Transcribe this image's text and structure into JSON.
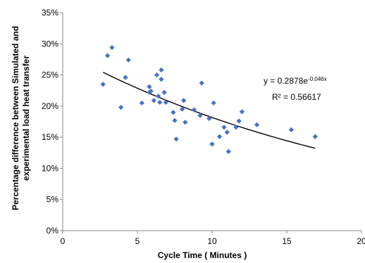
{
  "chart_data": {
    "type": "scatter",
    "title": "",
    "xlabel": "Cycle Time ( Minutes )",
    "ylabel_lines": [
      "Percentage difference between Simulated and",
      "experimental load heat transfer"
    ],
    "xlim": [
      0,
      20
    ],
    "ylim": [
      0,
      0.35
    ],
    "x_ticks": [
      0,
      5,
      10,
      15,
      20
    ],
    "x_tick_labels": [
      "0",
      "5",
      "10",
      "15",
      "20"
    ],
    "y_ticks": [
      0,
      0.05,
      0.1,
      0.15,
      0.2,
      0.25,
      0.3,
      0.35
    ],
    "y_tick_labels": [
      "0%",
      "5%",
      "10%",
      "15%",
      "20%",
      "25%",
      "30%",
      "35%"
    ],
    "grid": false,
    "marker": "diamond",
    "marker_color": "#4472C4",
    "trendline_color": "#000000",
    "points": [
      [
        2.7,
        0.235
      ],
      [
        3.0,
        0.281
      ],
      [
        3.3,
        0.294
      ],
      [
        3.9,
        0.198
      ],
      [
        4.2,
        0.246
      ],
      [
        4.4,
        0.274
      ],
      [
        5.3,
        0.205
      ],
      [
        5.8,
        0.222
      ],
      [
        5.8,
        0.231
      ],
      [
        5.9,
        0.224
      ],
      [
        6.1,
        0.209
      ],
      [
        6.3,
        0.25
      ],
      [
        6.4,
        0.216
      ],
      [
        6.5,
        0.206
      ],
      [
        6.6,
        0.258
      ],
      [
        6.6,
        0.243
      ],
      [
        6.8,
        0.222
      ],
      [
        6.9,
        0.206
      ],
      [
        7.4,
        0.19
      ],
      [
        7.5,
        0.177
      ],
      [
        7.6,
        0.147
      ],
      [
        8.0,
        0.195
      ],
      [
        8.1,
        0.209
      ],
      [
        8.2,
        0.174
      ],
      [
        8.8,
        0.194
      ],
      [
        9.2,
        0.185
      ],
      [
        9.3,
        0.237
      ],
      [
        9.8,
        0.18
      ],
      [
        10.0,
        0.139
      ],
      [
        10.1,
        0.205
      ],
      [
        10.5,
        0.151
      ],
      [
        10.8,
        0.166
      ],
      [
        11.0,
        0.158
      ],
      [
        11.1,
        0.127
      ],
      [
        11.6,
        0.166
      ],
      [
        11.8,
        0.176
      ],
      [
        12.0,
        0.191
      ],
      [
        13.0,
        0.17
      ],
      [
        15.3,
        0.162
      ],
      [
        16.9,
        0.151
      ]
    ],
    "trendline": {
      "a": 0.2878,
      "b": -0.046,
      "x_start": 2.7,
      "x_end": 16.9
    },
    "equation": {
      "base": "y = 0.2878e",
      "exponent": "-0.046x"
    },
    "r_squared": "R² = 0.56617"
  }
}
